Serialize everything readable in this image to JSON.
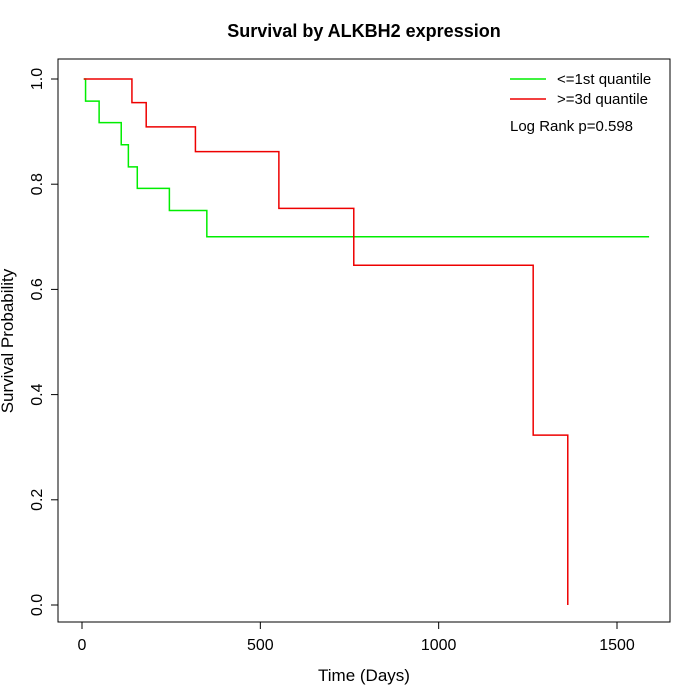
{
  "chart_data": {
    "type": "line",
    "title": "Survival by ALKBH2 expression",
    "xlabel": "Time (Days)",
    "ylabel": "Survival Probability",
    "xlim": [
      0,
      1600
    ],
    "ylim": [
      0,
      1
    ],
    "x_ticks": [
      0,
      500,
      1000,
      1500
    ],
    "y_ticks": [
      0.0,
      0.2,
      0.4,
      0.6,
      0.8,
      1.0
    ],
    "x_tick_labels": [
      "0",
      "500",
      "1000",
      "1500"
    ],
    "y_tick_labels": [
      "0.0",
      "0.2",
      "0.4",
      "0.6",
      "0.8",
      "1.0"
    ],
    "grid": false,
    "legend_position": "top-right",
    "annotation": "Log Rank p=0.598",
    "series": [
      {
        "name": "<=1st quantile",
        "color": "#00ee00",
        "step": true,
        "x": [
          5,
          10,
          48,
          110,
          130,
          155,
          245,
          350,
          1590
        ],
        "y": [
          1.0,
          0.958,
          0.917,
          0.875,
          0.833,
          0.792,
          0.75,
          0.7,
          0.7
        ]
      },
      {
        "name": ">=3d quantile",
        "color": "#ee0000",
        "step": true,
        "x": [
          5,
          140,
          180,
          318,
          552,
          762,
          1265,
          1362,
          1362
        ],
        "y": [
          1.0,
          0.955,
          0.909,
          0.862,
          0.754,
          0.646,
          0.323,
          0.0,
          0.0
        ]
      }
    ]
  }
}
